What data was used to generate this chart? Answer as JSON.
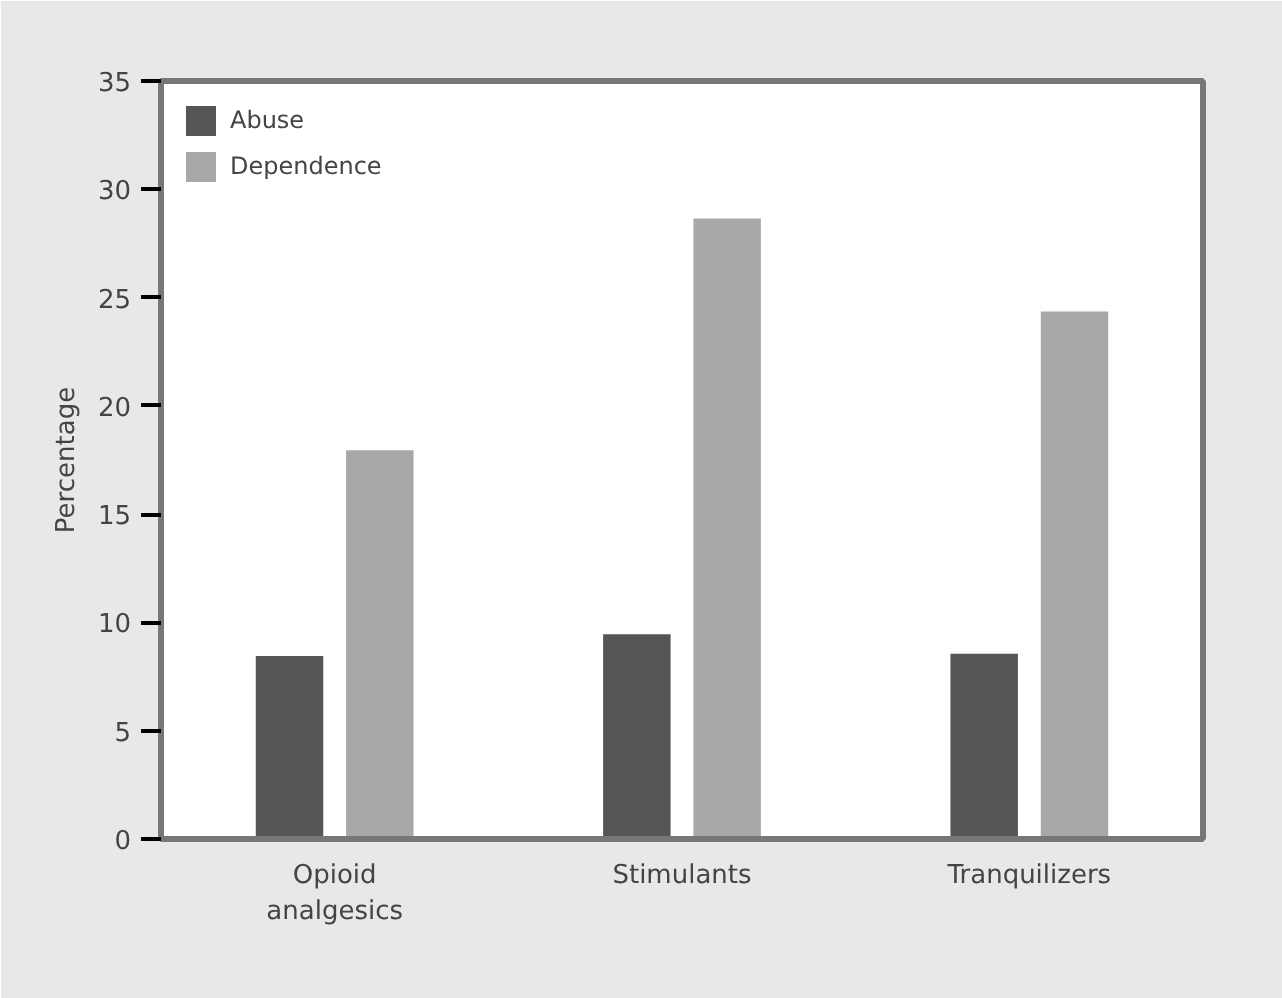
{
  "chart_data": {
    "type": "bar",
    "ylabel": "Percentage",
    "categories": [
      "Opioid\nanalgesics",
      "Stimulants",
      "Tranquilizers"
    ],
    "series": [
      {
        "name": "Abuse",
        "color": "#555555",
        "values": [
          8.5,
          9.5,
          8.6
        ]
      },
      {
        "name": "Dependence",
        "color": "#a8a8a8",
        "values": [
          18.0,
          28.7,
          24.4
        ]
      }
    ],
    "ylim": [
      0,
      35
    ],
    "yticks": [
      0,
      5,
      10,
      15,
      20,
      25,
      30,
      35
    ],
    "grid": false,
    "legend": "top left"
  }
}
